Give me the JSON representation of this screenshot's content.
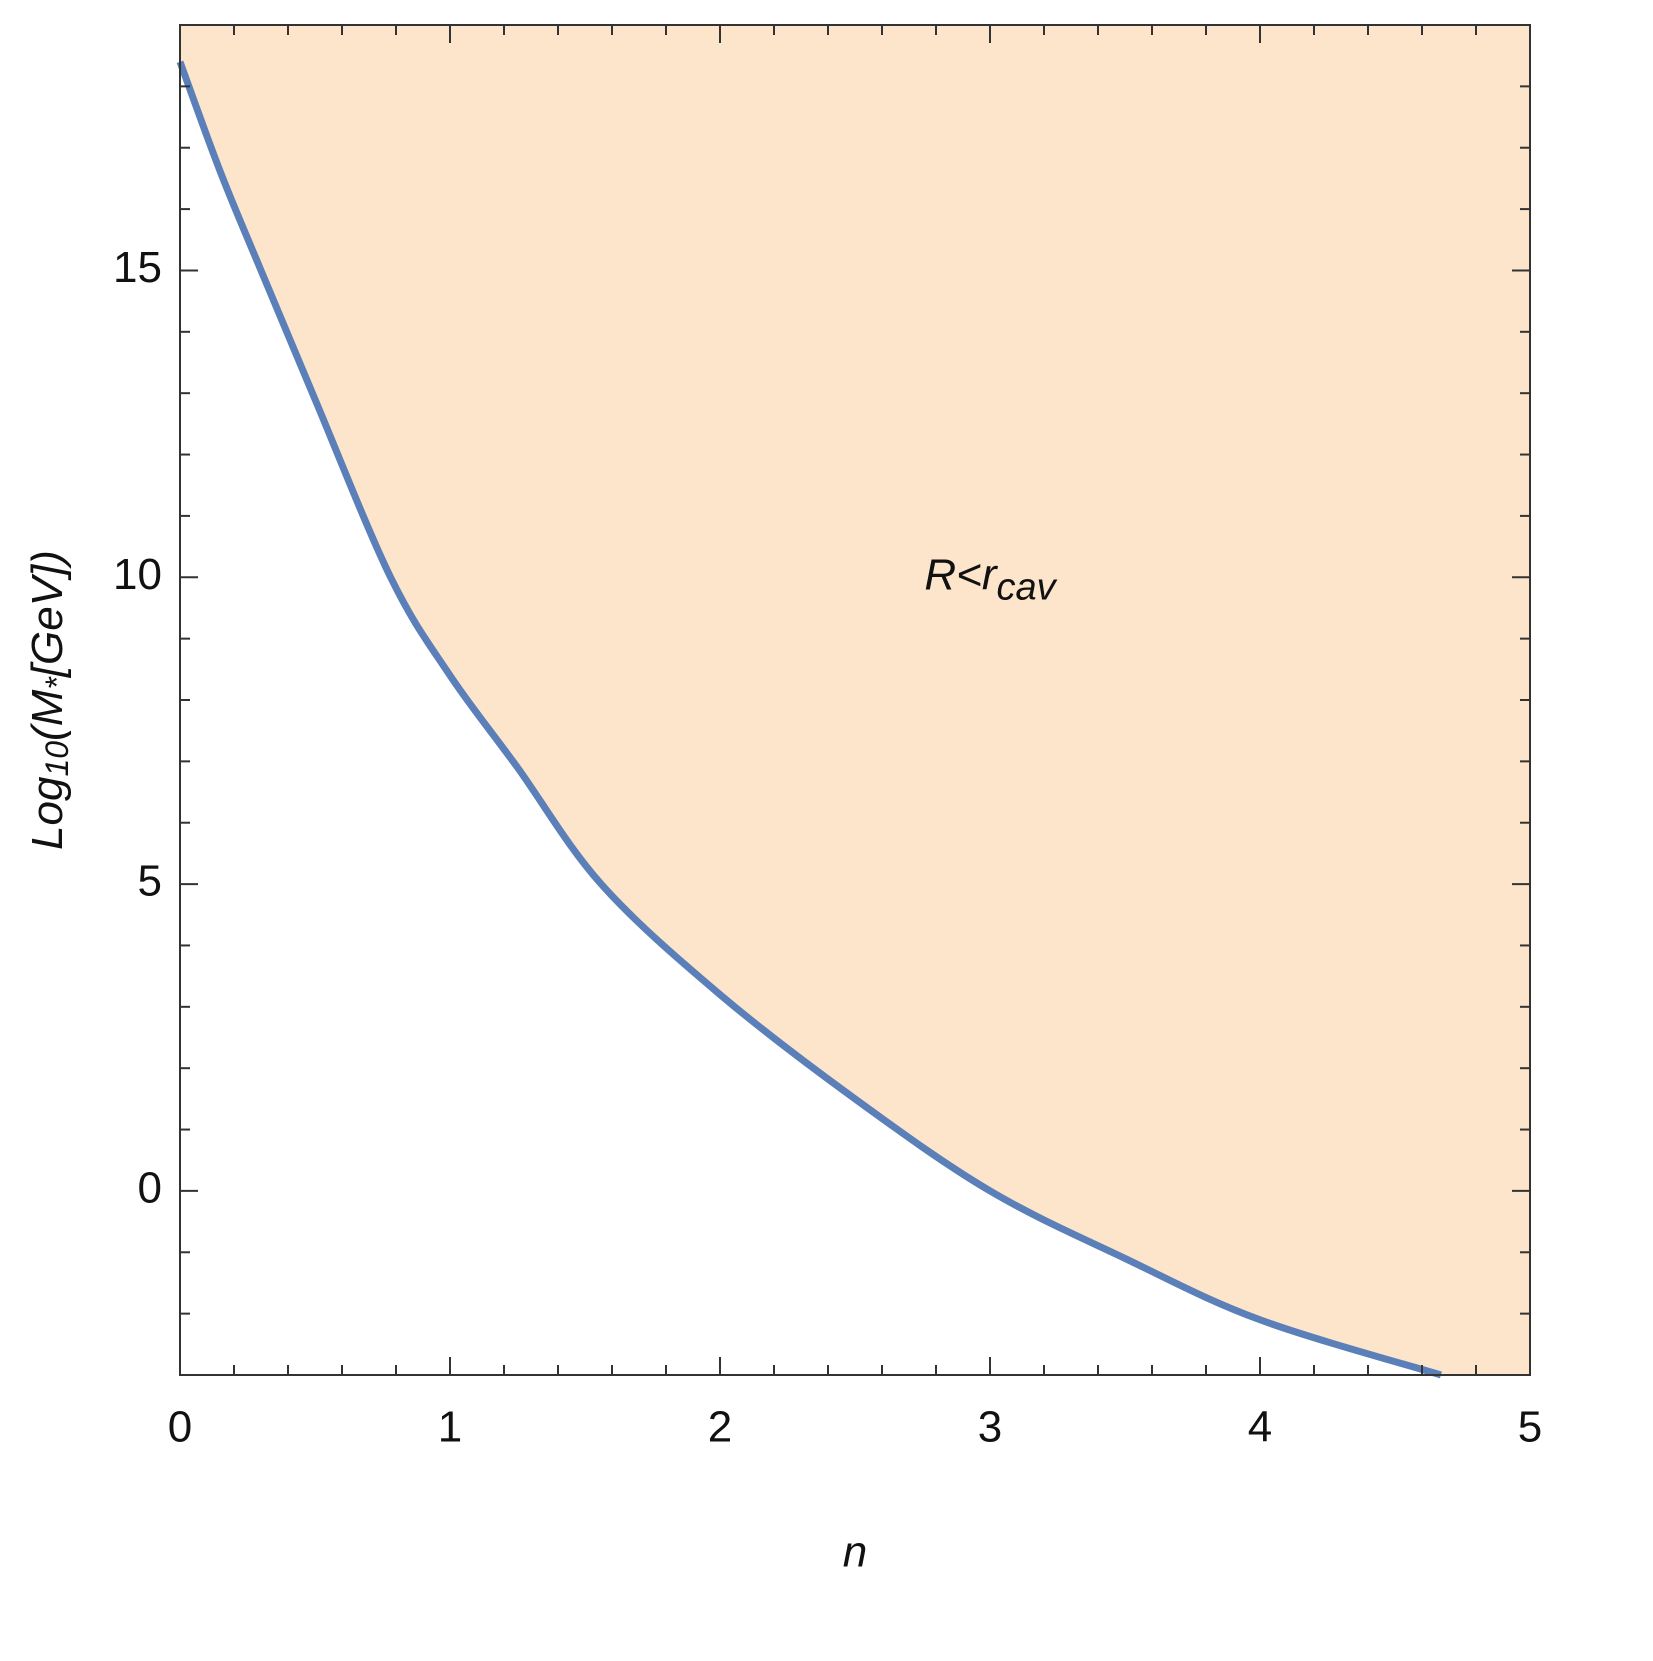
{
  "chart_data": {
    "type": "area",
    "x_label": "n",
    "y_label": {
      "parts": [
        "Log",
        "10",
        "(M",
        "*",
        "[GeV])"
      ]
    },
    "annotation": {
      "text": "R<r",
      "subscript": "cav",
      "x": 3,
      "y": 10
    },
    "x": [
      0,
      0.15,
      0.3,
      0.5,
      0.78,
      1,
      1.25,
      1.56,
      2,
      2.5,
      3,
      3.5,
      4,
      4.67
    ],
    "series": [
      {
        "color": "#5b7fb8",
        "fill": "#fde5cc",
        "values": [
          18.4,
          16.6,
          15,
          12.9,
          10,
          8.4,
          6.9,
          5,
          3.2,
          1.5,
          0,
          -1.1,
          -2.1,
          -3
        ]
      }
    ],
    "xlim": [
      0,
      5
    ],
    "ylim": [
      -3,
      19
    ],
    "xticks": [
      0,
      1,
      2,
      3,
      4,
      5
    ],
    "yticks": [
      0,
      5,
      10,
      15
    ],
    "xminorticks": [
      0.2,
      0.4,
      0.6,
      0.8,
      1.2,
      1.4,
      1.6,
      1.8,
      2.2,
      2.4,
      2.6,
      2.8,
      3.2,
      3.4,
      3.6,
      3.8,
      4.2,
      4.4,
      4.6,
      4.8
    ],
    "yminorticks": [
      -2,
      -1,
      1,
      2,
      3,
      4,
      6,
      7,
      8,
      9,
      11,
      12,
      13,
      14,
      16,
      17,
      18
    ],
    "grid": false
  }
}
